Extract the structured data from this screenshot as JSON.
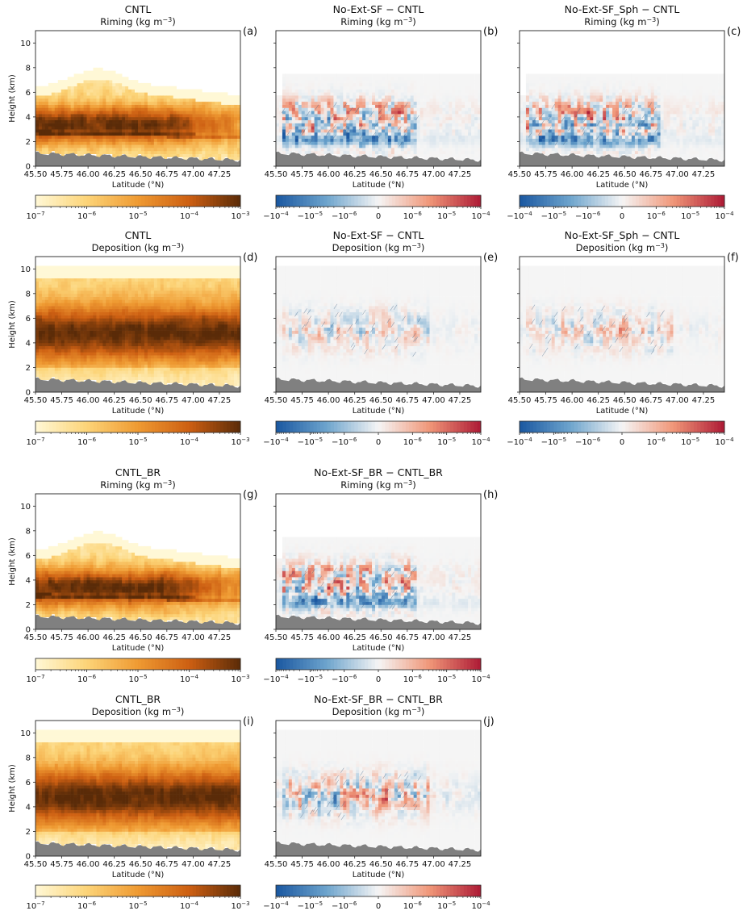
{
  "figure": {
    "xlabel": "Latitude (°N)",
    "ylabel": "Height (km)",
    "x_ticks": [
      "45.50",
      "45.75",
      "46.00",
      "46.25",
      "46.50",
      "46.75",
      "47.00",
      "47.25"
    ],
    "y_ticks": [
      "0",
      "2",
      "4",
      "6",
      "8",
      "10"
    ],
    "seq_cbar_ticks": [
      "10−7",
      "10−6",
      "10−5",
      "10−4",
      "10−3"
    ],
    "div_cbar_ticks": [
      "−10−4",
      "−10−5",
      "−10−6",
      "0",
      "10−6",
      "10−5",
      "10−4"
    ],
    "colors": {
      "terrain": "#808080",
      "seq_low": "#fff8d6",
      "seq_mid": "#ef9a32",
      "seq_high": "#5a2b08",
      "div_neg": "#1a57a0",
      "div_zero": "#f5f5f5",
      "div_pos": "#ad1a35"
    }
  },
  "chart_data": [
    {
      "type": "heatmap",
      "panel": "a",
      "title": "CNTL",
      "subtitle": "Riming  (kg m−3)",
      "kind": "seq",
      "field": "riming",
      "xlabel": "Latitude (°N)",
      "ylabel": "Height (km)",
      "xlim": [
        45.5,
        47.45
      ],
      "ylim": [
        0,
        11
      ],
      "colorbar": {
        "scale": "log",
        "range": [
          1e-07,
          0.001
        ]
      }
    },
    {
      "type": "heatmap",
      "panel": "b",
      "title": "No-Ext-SF − CNTL",
      "subtitle": "Riming  (kg m−3)",
      "kind": "div",
      "field": "riming",
      "xlabel": "Latitude (°N)",
      "ylabel": "",
      "xlim": [
        45.5,
        47.45
      ],
      "ylim": [
        0,
        11
      ],
      "colorbar": {
        "scale": "symlog",
        "range": [
          -0.0001,
          0.0001
        ]
      }
    },
    {
      "type": "heatmap",
      "panel": "c",
      "title": "No-Ext-SF_Sph − CNTL",
      "subtitle": "Riming  (kg m−3)",
      "kind": "div",
      "field": "riming",
      "xlabel": "Latitude (°N)",
      "ylabel": "",
      "xlim": [
        45.5,
        47.45
      ],
      "ylim": [
        0,
        11
      ],
      "colorbar": {
        "scale": "symlog",
        "range": [
          -0.0001,
          0.0001
        ]
      }
    },
    {
      "type": "heatmap",
      "panel": "d",
      "title": "CNTL",
      "subtitle": "Deposition  (kg m−3)",
      "kind": "seq",
      "field": "deposition",
      "xlabel": "Latitude (°N)",
      "ylabel": "Height (km)",
      "xlim": [
        45.5,
        47.45
      ],
      "ylim": [
        0,
        11
      ],
      "colorbar": {
        "scale": "log",
        "range": [
          1e-07,
          0.001
        ]
      }
    },
    {
      "type": "heatmap",
      "panel": "e",
      "title": "No-Ext-SF − CNTL",
      "subtitle": "Deposition  (kg m−3)",
      "kind": "div",
      "field": "deposition",
      "xlabel": "Latitude (°N)",
      "ylabel": "",
      "xlim": [
        45.5,
        47.45
      ],
      "ylim": [
        0,
        11
      ],
      "colorbar": {
        "scale": "symlog",
        "range": [
          -0.0001,
          0.0001
        ]
      }
    },
    {
      "type": "heatmap",
      "panel": "f",
      "title": "No-Ext-SF_Sph − CNTL",
      "subtitle": "Deposition  (kg m−3)",
      "kind": "div",
      "field": "deposition",
      "xlabel": "Latitude (°N)",
      "ylabel": "",
      "xlim": [
        45.5,
        47.45
      ],
      "ylim": [
        0,
        11
      ],
      "colorbar": {
        "scale": "symlog",
        "range": [
          -0.0001,
          0.0001
        ]
      }
    },
    {
      "type": "heatmap",
      "panel": "g",
      "title": "CNTL_BR",
      "subtitle": "Riming  (kg m−3)",
      "kind": "seq",
      "field": "riming",
      "xlabel": "Latitude (°N)",
      "ylabel": "Height (km)",
      "xlim": [
        45.5,
        47.45
      ],
      "ylim": [
        0,
        11
      ],
      "colorbar": {
        "scale": "log",
        "range": [
          1e-07,
          0.001
        ]
      }
    },
    {
      "type": "heatmap",
      "panel": "h",
      "title": "No-Ext-SF_BR − CNTL_BR",
      "subtitle": "Riming  (kg m−3)",
      "kind": "div",
      "field": "riming",
      "xlabel": "Latitude (°N)",
      "ylabel": "",
      "xlim": [
        45.5,
        47.45
      ],
      "ylim": [
        0,
        11
      ],
      "colorbar": {
        "scale": "symlog",
        "range": [
          -0.0001,
          0.0001
        ]
      }
    },
    {
      "type": "heatmap",
      "panel": "i",
      "title": "CNTL_BR",
      "subtitle": "Deposition  (kg m−3)",
      "kind": "seq",
      "field": "deposition",
      "xlabel": "Latitude (°N)",
      "ylabel": "Height (km)",
      "xlim": [
        45.5,
        47.45
      ],
      "ylim": [
        0,
        11
      ],
      "colorbar": {
        "scale": "log",
        "range": [
          1e-07,
          0.001
        ]
      }
    },
    {
      "type": "heatmap",
      "panel": "j",
      "title": "No-Ext-SF_BR − CNTL_BR",
      "subtitle": "Deposition  (kg m−3)",
      "kind": "div",
      "field": "deposition",
      "xlabel": "Latitude (°N)",
      "ylabel": "",
      "xlim": [
        45.5,
        47.45
      ],
      "ylim": [
        0,
        11
      ],
      "colorbar": {
        "scale": "symlog",
        "range": [
          -0.0001,
          0.0001
        ]
      }
    }
  ]
}
